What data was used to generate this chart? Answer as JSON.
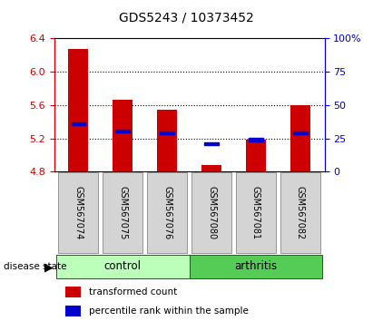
{
  "title": "GDS5243 / 10373452",
  "samples": [
    "GSM567074",
    "GSM567075",
    "GSM567076",
    "GSM567080",
    "GSM567081",
    "GSM567082"
  ],
  "groups": [
    "control",
    "control",
    "control",
    "arthritis",
    "arthritis",
    "arthritis"
  ],
  "bar_bottom": 4.8,
  "bar_tops": [
    6.27,
    5.66,
    5.55,
    4.88,
    5.18,
    5.6
  ],
  "percentile_vals": [
    5.38,
    5.29,
    5.27,
    5.14,
    5.185,
    5.265
  ],
  "ylim_left": [
    4.8,
    6.4
  ],
  "ylim_right": [
    0,
    100
  ],
  "yticks_left": [
    4.8,
    5.2,
    5.6,
    6.0,
    6.4
  ],
  "yticks_right": [
    0,
    25,
    50,
    75,
    100
  ],
  "ytick_labels_right": [
    "0",
    "25",
    "50",
    "75",
    "100%"
  ],
  "grid_lines": [
    5.2,
    5.6,
    6.0
  ],
  "bar_color": "#cc0000",
  "blue_color": "#0000cc",
  "control_color": "#bbffbb",
  "arthritis_color": "#55cc55",
  "legend_items": [
    "transformed count",
    "percentile rank within the sample"
  ],
  "title_fontsize": 10,
  "tick_fontsize": 8,
  "sample_fontsize": 7,
  "group_fontsize": 8.5
}
